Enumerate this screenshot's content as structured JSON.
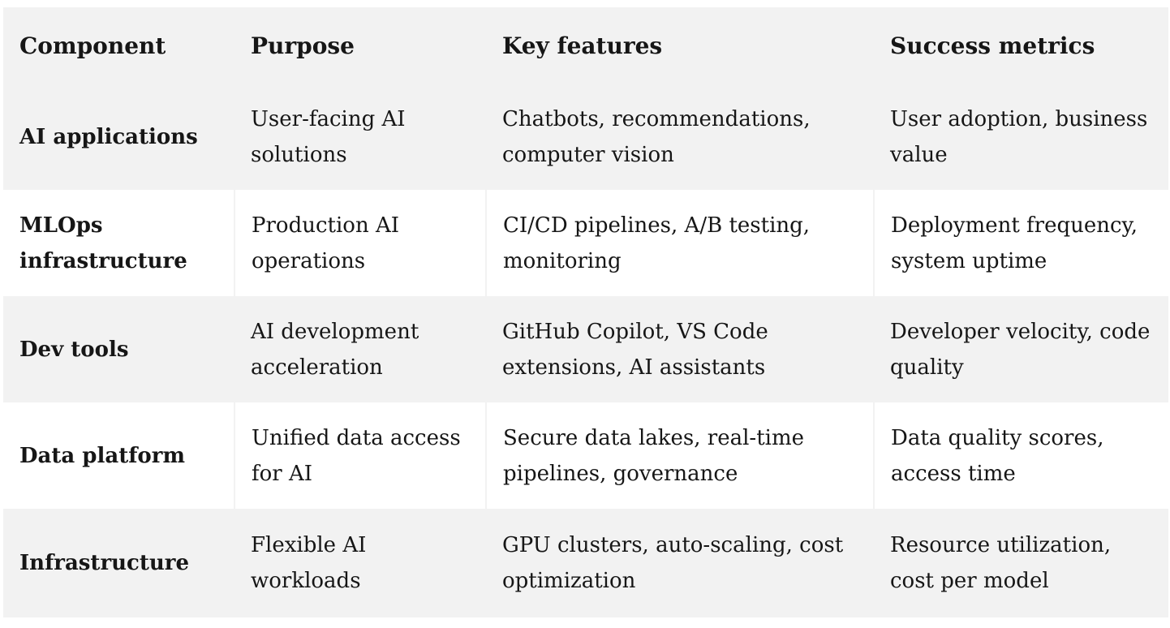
{
  "table": {
    "headers": [
      "Component",
      "Purpose",
      "Key features",
      "Success metrics"
    ],
    "rows": [
      {
        "component": "AI applications",
        "purpose": "User-facing AI solutions",
        "features": "Chatbots, recommendations, computer vision",
        "metrics": "User adoption, business value"
      },
      {
        "component": "MLOps infrastructure",
        "purpose": "Production AI operations",
        "features": "CI/CD pipelines, A/B testing, monitoring",
        "metrics": "Deployment frequency, system uptime"
      },
      {
        "component": "Dev tools",
        "purpose": "AI development acceleration",
        "features": "GitHub Copilot, VS Code extensions, AI assistants",
        "metrics": "Developer velocity, code quality"
      },
      {
        "component": "Data platform",
        "purpose": "Unified data access for AI",
        "features": "Secure data lakes, real-time pipelines, governance",
        "metrics": "Data quality scores, access time"
      },
      {
        "component": "Infrastructure",
        "purpose": "Flexible AI workloads",
        "features": "GPU clusters, auto-scaling, cost optimization",
        "metrics": "Resource utilization, cost per model"
      }
    ]
  }
}
